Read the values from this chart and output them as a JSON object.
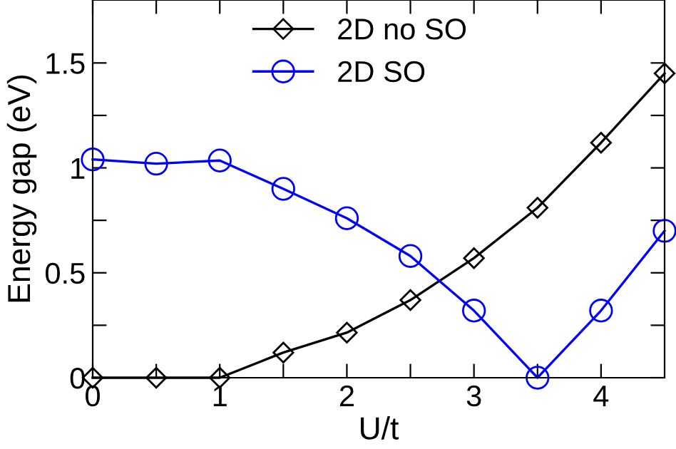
{
  "chart_data": {
    "type": "line",
    "xlabel": "U/t",
    "ylabel": "Energy gap (eV)",
    "x": [
      0,
      0.5,
      1,
      1.5,
      2,
      2.5,
      3,
      3.5,
      4,
      4.5
    ],
    "series": [
      {
        "name": "2D no SO",
        "color": "#000000",
        "marker": "diamond",
        "values": [
          0,
          0,
          0,
          0.12,
          0.215,
          0.37,
          0.57,
          0.81,
          1.12,
          1.45
        ]
      },
      {
        "name": "2D SO",
        "color": "#0000ff",
        "marker": "circle",
        "values": [
          1.04,
          1.02,
          1.035,
          0.9,
          0.76,
          0.58,
          0.32,
          0,
          0.32,
          0.7
        ]
      }
    ],
    "xlim": [
      0,
      4.5
    ],
    "ylim": [
      0,
      1.8
    ],
    "xticks": [
      0,
      {
        "value": 0.5,
        "label": null
      },
      1,
      {
        "value": 1.5,
        "label": null
      },
      2,
      {
        "value": 2.5,
        "label": null
      },
      3,
      {
        "value": 3.5,
        "label": null
      },
      4
    ],
    "yticks": [
      0,
      {
        "value": 0.25,
        "label": null
      },
      0.5,
      {
        "value": 0.75,
        "label": null
      },
      1,
      {
        "value": 1.25,
        "label": null
      },
      1.5
    ],
    "legend": "top left",
    "grid": false,
    "line_style": "solid"
  }
}
